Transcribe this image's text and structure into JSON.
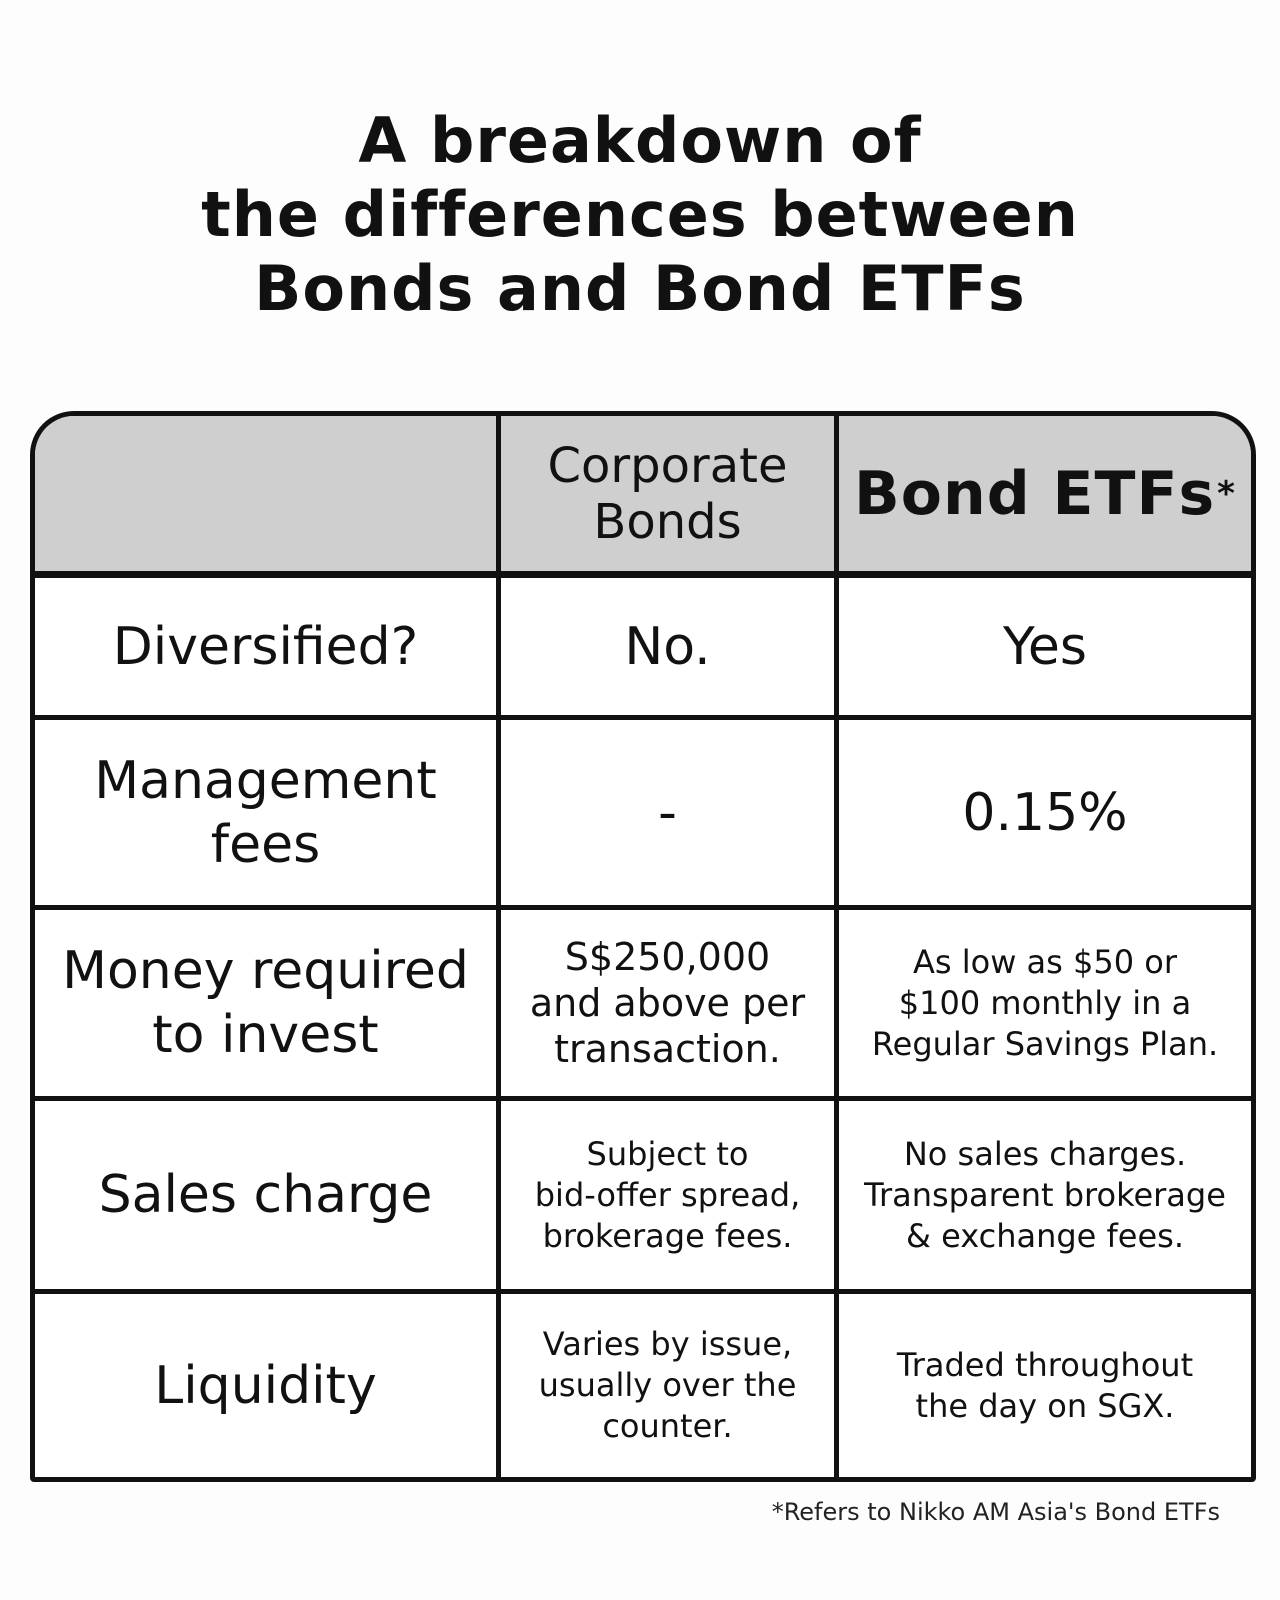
{
  "title": {
    "line1": "A breakdown of",
    "line2": "the differences between",
    "line3": "Bonds and Bond ETFs"
  },
  "table": {
    "headers": {
      "corporate_bonds": "Corporate\nBonds",
      "bond_etfs": "Bond ETFs",
      "bond_etfs_marker": "*"
    },
    "rows": [
      {
        "label": "Diversified?",
        "corporate": "No.",
        "etf": "Yes"
      },
      {
        "label": "Management\nfees",
        "corporate": "-",
        "etf": "0.15%"
      },
      {
        "label": "Money required\nto invest",
        "corporate": "S$250,000\nand above per\ntransaction.",
        "etf": "As low as $50 or\n$100 monthly in a\nRegular Savings Plan."
      },
      {
        "label": "Sales charge",
        "corporate": "Subject to\nbid-offer spread,\nbrokerage fees.",
        "etf": "No sales charges.\nTransparent brokerage\n& exchange fees."
      },
      {
        "label": "Liquidity",
        "corporate": "Varies by issue,\nusually over the\ncounter.",
        "etf": "Traded throughout\nthe day on SGX."
      }
    ]
  },
  "footnote": "*Refers to Nikko AM Asia's Bond ETFs"
}
